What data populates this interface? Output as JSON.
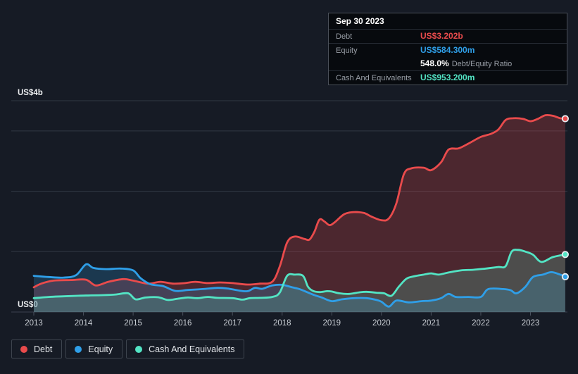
{
  "page": {
    "background": "#161b25"
  },
  "colors": {
    "debt": "#e94b4c",
    "equity": "#2f9fe8",
    "cash": "#53e4c4",
    "debt_fill": "rgba(233,75,76,0.26)",
    "equity_fill": "rgba(47,159,232,0.22)",
    "cash_fill": "rgba(83,228,196,0.20)",
    "gridline": "#303844",
    "axis_line": "#3a424e",
    "tick": "#4a525e",
    "axis_text": "#c9ced4",
    "y_label_text": "#eceef0",
    "marker_ring": "#e9edf2"
  },
  "tooltip": {
    "date": "Sep 30 2023",
    "rows": {
      "debt": {
        "label": "Debt",
        "value": "US$3.202b"
      },
      "equity": {
        "label": "Equity",
        "value": "US$584.300m"
      },
      "ratio": {
        "value": "548.0%",
        "label": "Debt/Equity Ratio"
      },
      "cash": {
        "label": "Cash And Equivalents",
        "value": "US$953.200m"
      }
    }
  },
  "legend": {
    "items": [
      {
        "label": "Debt",
        "color_key": "debt"
      },
      {
        "label": "Equity",
        "color_key": "equity"
      },
      {
        "label": "Cash And Equivalents",
        "color_key": "cash"
      }
    ]
  },
  "chart_data": {
    "type": "area",
    "unit": "US$ billions",
    "title": "",
    "y_axis": {
      "top_label": "US$4b",
      "bottom_label": "US$0",
      "min": 0,
      "max": 3.5,
      "gridline_values": [
        1,
        2,
        3
      ]
    },
    "x_axis": {
      "tick_years": [
        2013,
        2014,
        2015,
        2016,
        2017,
        2018,
        2019,
        2020,
        2021,
        2022,
        2023
      ]
    },
    "series": [
      {
        "name": "Debt",
        "color_key": "debt",
        "fill_key": "debt_fill",
        "end_marker": true,
        "points": [
          [
            2013.0,
            0.41
          ],
          [
            2013.15,
            0.47
          ],
          [
            2013.4,
            0.52
          ],
          [
            2013.75,
            0.53
          ],
          [
            2014.05,
            0.535
          ],
          [
            2014.25,
            0.44
          ],
          [
            2014.5,
            0.5
          ],
          [
            2014.8,
            0.545
          ],
          [
            2015.0,
            0.52
          ],
          [
            2015.3,
            0.47
          ],
          [
            2015.55,
            0.5
          ],
          [
            2015.8,
            0.47
          ],
          [
            2016.05,
            0.48
          ],
          [
            2016.25,
            0.5
          ],
          [
            2016.5,
            0.48
          ],
          [
            2016.75,
            0.49
          ],
          [
            2017.0,
            0.48
          ],
          [
            2017.3,
            0.455
          ],
          [
            2017.55,
            0.47
          ],
          [
            2017.8,
            0.5
          ],
          [
            2017.95,
            0.75
          ],
          [
            2018.1,
            1.15
          ],
          [
            2018.25,
            1.25
          ],
          [
            2018.45,
            1.21
          ],
          [
            2018.55,
            1.2
          ],
          [
            2018.65,
            1.33
          ],
          [
            2018.75,
            1.53
          ],
          [
            2018.85,
            1.5
          ],
          [
            2018.95,
            1.44
          ],
          [
            2019.05,
            1.48
          ],
          [
            2019.25,
            1.62
          ],
          [
            2019.45,
            1.655
          ],
          [
            2019.65,
            1.64
          ],
          [
            2019.8,
            1.58
          ],
          [
            2020.0,
            1.52
          ],
          [
            2020.15,
            1.55
          ],
          [
            2020.3,
            1.8
          ],
          [
            2020.45,
            2.28
          ],
          [
            2020.6,
            2.38
          ],
          [
            2020.85,
            2.39
          ],
          [
            2021.0,
            2.35
          ],
          [
            2021.2,
            2.48
          ],
          [
            2021.35,
            2.69
          ],
          [
            2021.55,
            2.71
          ],
          [
            2021.75,
            2.79
          ],
          [
            2022.0,
            2.9
          ],
          [
            2022.2,
            2.95
          ],
          [
            2022.35,
            3.02
          ],
          [
            2022.5,
            3.18
          ],
          [
            2022.65,
            3.21
          ],
          [
            2022.85,
            3.2
          ],
          [
            2023.0,
            3.16
          ],
          [
            2023.15,
            3.2
          ],
          [
            2023.3,
            3.26
          ],
          [
            2023.45,
            3.25
          ],
          [
            2023.6,
            3.21
          ],
          [
            2023.7,
            3.202
          ]
        ]
      },
      {
        "name": "Equity",
        "color_key": "equity",
        "fill_key": "equity_fill",
        "end_marker": true,
        "points": [
          [
            2013.0,
            0.6
          ],
          [
            2013.3,
            0.58
          ],
          [
            2013.6,
            0.57
          ],
          [
            2013.85,
            0.61
          ],
          [
            2014.05,
            0.79
          ],
          [
            2014.2,
            0.73
          ],
          [
            2014.45,
            0.71
          ],
          [
            2014.75,
            0.72
          ],
          [
            2015.0,
            0.69
          ],
          [
            2015.15,
            0.56
          ],
          [
            2015.35,
            0.46
          ],
          [
            2015.6,
            0.43
          ],
          [
            2015.85,
            0.35
          ],
          [
            2016.1,
            0.365
          ],
          [
            2016.4,
            0.38
          ],
          [
            2016.7,
            0.4
          ],
          [
            2016.9,
            0.39
          ],
          [
            2017.1,
            0.36
          ],
          [
            2017.3,
            0.345
          ],
          [
            2017.45,
            0.4
          ],
          [
            2017.6,
            0.385
          ],
          [
            2017.8,
            0.44
          ],
          [
            2018.0,
            0.45
          ],
          [
            2018.2,
            0.41
          ],
          [
            2018.35,
            0.38
          ],
          [
            2018.5,
            0.33
          ],
          [
            2018.65,
            0.28
          ],
          [
            2018.8,
            0.24
          ],
          [
            2019.0,
            0.18
          ],
          [
            2019.2,
            0.21
          ],
          [
            2019.45,
            0.23
          ],
          [
            2019.7,
            0.23
          ],
          [
            2019.9,
            0.2
          ],
          [
            2020.0,
            0.17
          ],
          [
            2020.15,
            0.09
          ],
          [
            2020.3,
            0.19
          ],
          [
            2020.55,
            0.16
          ],
          [
            2020.8,
            0.18
          ],
          [
            2021.0,
            0.19
          ],
          [
            2021.2,
            0.23
          ],
          [
            2021.35,
            0.3
          ],
          [
            2021.5,
            0.25
          ],
          [
            2021.75,
            0.25
          ],
          [
            2022.0,
            0.25
          ],
          [
            2022.15,
            0.38
          ],
          [
            2022.45,
            0.38
          ],
          [
            2022.6,
            0.36
          ],
          [
            2022.72,
            0.31
          ],
          [
            2022.9,
            0.42
          ],
          [
            2023.05,
            0.58
          ],
          [
            2023.25,
            0.62
          ],
          [
            2023.42,
            0.66
          ],
          [
            2023.6,
            0.62
          ],
          [
            2023.7,
            0.5843
          ]
        ]
      },
      {
        "name": "Cash And Equivalents",
        "color_key": "cash",
        "fill_key": "cash_fill",
        "end_marker": true,
        "points": [
          [
            2013.0,
            0.23
          ],
          [
            2013.3,
            0.25
          ],
          [
            2013.6,
            0.26
          ],
          [
            2013.9,
            0.27
          ],
          [
            2014.15,
            0.275
          ],
          [
            2014.4,
            0.28
          ],
          [
            2014.65,
            0.29
          ],
          [
            2014.9,
            0.31
          ],
          [
            2015.05,
            0.21
          ],
          [
            2015.25,
            0.24
          ],
          [
            2015.5,
            0.245
          ],
          [
            2015.7,
            0.2
          ],
          [
            2015.9,
            0.22
          ],
          [
            2016.1,
            0.24
          ],
          [
            2016.3,
            0.23
          ],
          [
            2016.5,
            0.25
          ],
          [
            2016.7,
            0.235
          ],
          [
            2017.0,
            0.23
          ],
          [
            2017.2,
            0.205
          ],
          [
            2017.35,
            0.23
          ],
          [
            2017.55,
            0.235
          ],
          [
            2017.8,
            0.25
          ],
          [
            2017.95,
            0.32
          ],
          [
            2018.1,
            0.6
          ],
          [
            2018.25,
            0.62
          ],
          [
            2018.42,
            0.6
          ],
          [
            2018.52,
            0.42
          ],
          [
            2018.62,
            0.35
          ],
          [
            2018.75,
            0.33
          ],
          [
            2018.9,
            0.345
          ],
          [
            2019.0,
            0.34
          ],
          [
            2019.15,
            0.31
          ],
          [
            2019.35,
            0.3
          ],
          [
            2019.55,
            0.325
          ],
          [
            2019.7,
            0.335
          ],
          [
            2019.9,
            0.32
          ],
          [
            2020.05,
            0.31
          ],
          [
            2020.2,
            0.27
          ],
          [
            2020.35,
            0.42
          ],
          [
            2020.5,
            0.55
          ],
          [
            2020.65,
            0.59
          ],
          [
            2020.85,
            0.62
          ],
          [
            2021.0,
            0.64
          ],
          [
            2021.15,
            0.62
          ],
          [
            2021.35,
            0.655
          ],
          [
            2021.6,
            0.69
          ],
          [
            2021.85,
            0.7
          ],
          [
            2022.1,
            0.72
          ],
          [
            2022.35,
            0.745
          ],
          [
            2022.5,
            0.76
          ],
          [
            2022.62,
            1.0
          ],
          [
            2022.75,
            1.03
          ],
          [
            2022.9,
            1.0
          ],
          [
            2023.05,
            0.95
          ],
          [
            2023.22,
            0.83
          ],
          [
            2023.45,
            0.91
          ],
          [
            2023.7,
            0.9532
          ]
        ]
      }
    ]
  }
}
